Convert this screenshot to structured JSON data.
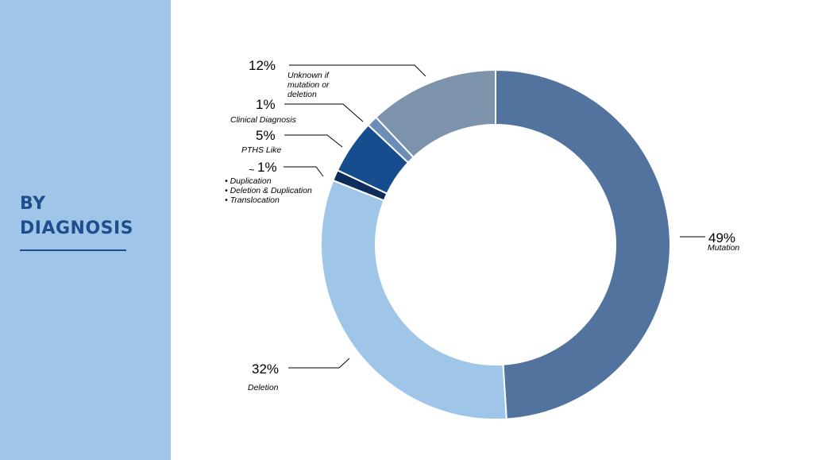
{
  "sidebar": {
    "title_line1": "BY",
    "title_line2": "DIAGNOSIS"
  },
  "chart_data": {
    "type": "pie",
    "donut": true,
    "categories": [
      "Mutation",
      "Deletion",
      "Duplication / Deletion & Duplication / Translocation",
      "PTHS Like",
      "Clinical Diagnosis",
      "Unknown if mutation or deletion"
    ],
    "values": [
      49,
      32,
      1,
      5,
      1,
      12
    ],
    "colors": [
      "#52739e",
      "#9fc5e8",
      "#0e2c5c",
      "#164d8f",
      "#6b8db8",
      "#7d93ab"
    ],
    "labels": {
      "mutation": {
        "pct": "49%",
        "name": "Mutation"
      },
      "deletion": {
        "pct": "32%",
        "name": "Deletion"
      },
      "other": {
        "prefix": "~",
        "pct": "1%",
        "items": [
          "• Duplication",
          "• Deletion & Duplication",
          "• Translocation"
        ]
      },
      "pths": {
        "pct": "5%",
        "name": "PTHS Like"
      },
      "clinical": {
        "pct": "1%",
        "name": "Clinical Diagnosis"
      },
      "unknown": {
        "pct": "12%",
        "lines": [
          "Unknown if",
          "mutation or",
          "deletion"
        ]
      }
    }
  }
}
